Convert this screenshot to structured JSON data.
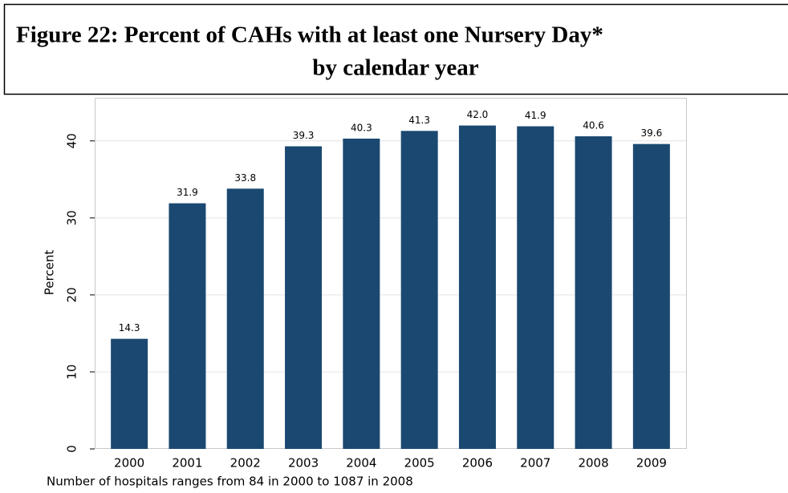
{
  "chart_data": {
    "type": "bar",
    "title": "Figure 22: Percent of CAHs with at least one Nursery Day*",
    "subtitle": "by calendar year",
    "y_label": "Percent",
    "note": "Number of hospitals ranges from 84 in 2000 to 1087 in 2008",
    "categories": [
      "2000",
      "2001",
      "2002",
      "2003",
      "2004",
      "2005",
      "2006",
      "2007",
      "2008",
      "2009"
    ],
    "values": [
      14.3,
      31.9,
      33.8,
      39.3,
      40.3,
      41.3,
      42.0,
      41.9,
      40.6,
      39.6
    ],
    "value_labels": [
      "14.3",
      "31.9",
      "33.8",
      "39.3",
      "40.3",
      "41.3",
      "42.0",
      "41.9",
      "40.6",
      "39.6"
    ],
    "color": "#1a4870",
    "ylim": [
      0,
      45.6
    ],
    "yticks": [
      0,
      10,
      20,
      30,
      40
    ],
    "grid": true
  }
}
